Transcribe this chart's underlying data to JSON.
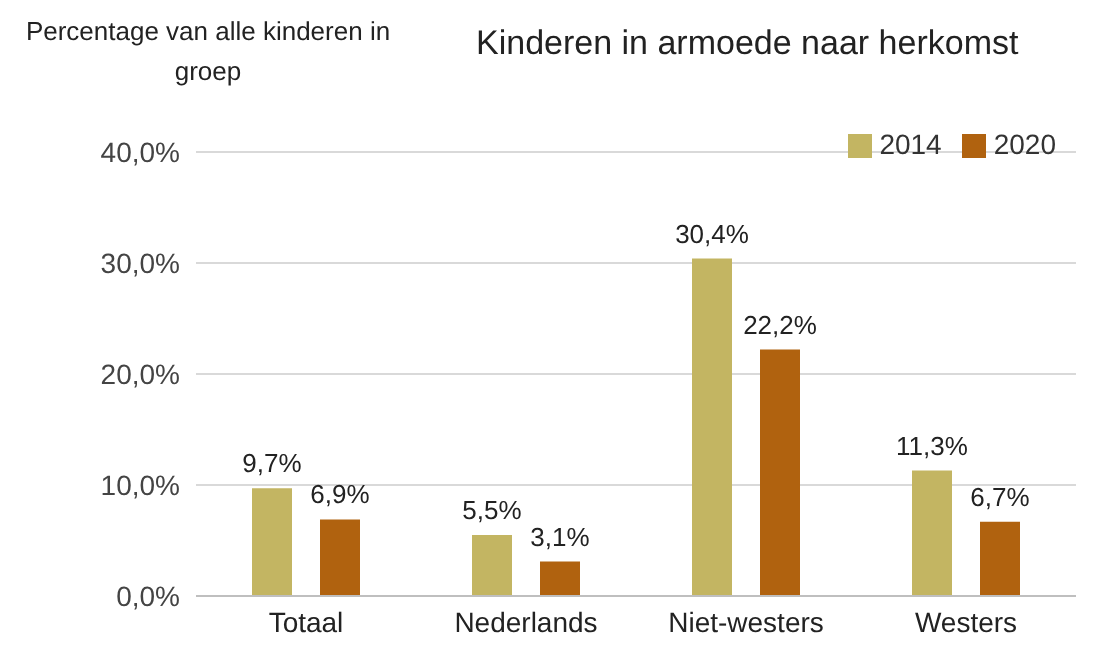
{
  "chart_data": {
    "type": "bar",
    "title": "Kinderen in armoede naar herkomst",
    "ylabel": "Percentage van alle kinderen in groep",
    "categories": [
      "Totaal",
      "Nederlands",
      "Niet-westers",
      "Westers"
    ],
    "series": [
      {
        "name": "2014",
        "color": "#c3b562",
        "values": [
          9.7,
          5.5,
          30.4,
          11.3
        ],
        "value_labels": [
          "9,7%",
          "5,5%",
          "30,4%",
          "11,3%"
        ]
      },
      {
        "name": "2020",
        "color": "#b0620f",
        "values": [
          6.9,
          3.1,
          22.2,
          6.7
        ],
        "value_labels": [
          "6,9%",
          "3,1%",
          "22,2%",
          "6,7%"
        ]
      }
    ],
    "ylim": [
      0,
      40
    ],
    "yticks": [
      {
        "value": 0,
        "label": "0,0%"
      },
      {
        "value": 10,
        "label": "10,0%"
      },
      {
        "value": 20,
        "label": "20,0%"
      },
      {
        "value": 30,
        "label": "30,0%"
      },
      {
        "value": 40,
        "label": "40,0%"
      }
    ],
    "grid": "y",
    "legend": "top right"
  }
}
